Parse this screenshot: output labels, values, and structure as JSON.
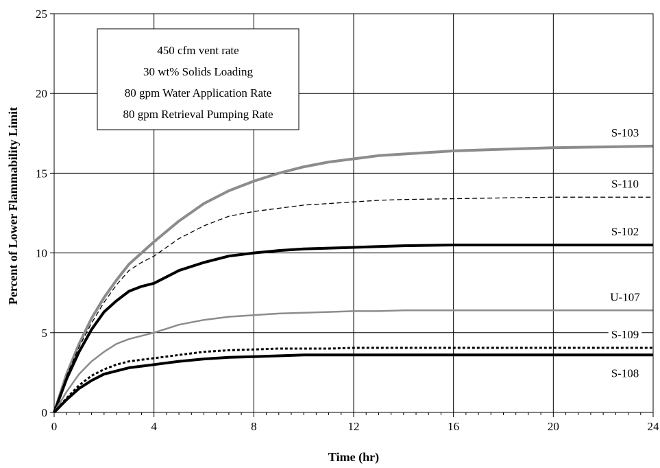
{
  "chart_data": {
    "type": "line",
    "xlabel": "Time (hr)",
    "ylabel": "Percent of Lower Flammability Limit",
    "xlim": [
      0,
      24
    ],
    "ylim": [
      0,
      25
    ],
    "xticks": [
      0,
      4,
      8,
      12,
      16,
      20,
      24
    ],
    "yticks": [
      0,
      5,
      10,
      15,
      20,
      25
    ],
    "grid": true,
    "annotation": [
      "450 cfm vent rate",
      "30 wt% Solids Loading",
      "80 gpm Water Application Rate",
      "80 gpm Retrieval Pumping Rate"
    ],
    "x": [
      0,
      0.5,
      1,
      1.5,
      2,
      2.5,
      3,
      3.5,
      4,
      5,
      6,
      7,
      8,
      9,
      10,
      11,
      12,
      13,
      14,
      16,
      18,
      20,
      22,
      24
    ],
    "series": [
      {
        "name": "S-103",
        "color": "#8c8c8c",
        "style": "solid-thick",
        "values": [
          0,
          2.4,
          4.3,
          5.9,
          7.2,
          8.3,
          9.3,
          10.0,
          10.7,
          12.0,
          13.1,
          13.9,
          14.5,
          15.0,
          15.4,
          15.7,
          15.9,
          16.1,
          16.2,
          16.4,
          16.5,
          16.6,
          16.65,
          16.7
        ]
      },
      {
        "name": "S-110",
        "color": "#000000",
        "style": "dashed",
        "values": [
          0,
          2.3,
          4.1,
          5.6,
          6.9,
          8.0,
          8.9,
          9.4,
          9.8,
          10.9,
          11.7,
          12.3,
          12.6,
          12.8,
          13.0,
          13.1,
          13.2,
          13.3,
          13.35,
          13.4,
          13.45,
          13.5,
          13.5,
          13.5
        ]
      },
      {
        "name": "S-102",
        "color": "#000000",
        "style": "solid-thick",
        "values": [
          0,
          2.1,
          3.8,
          5.2,
          6.3,
          7.0,
          7.6,
          7.9,
          8.1,
          8.9,
          9.4,
          9.8,
          10.0,
          10.15,
          10.25,
          10.3,
          10.35,
          10.4,
          10.45,
          10.5,
          10.5,
          10.5,
          10.5,
          10.5
        ]
      },
      {
        "name": "U-107",
        "color": "#8c8c8c",
        "style": "solid",
        "values": [
          0,
          1.3,
          2.4,
          3.2,
          3.8,
          4.3,
          4.6,
          4.8,
          5.0,
          5.5,
          5.8,
          6.0,
          6.1,
          6.2,
          6.25,
          6.3,
          6.35,
          6.35,
          6.4,
          6.4,
          6.4,
          6.4,
          6.4,
          6.4
        ]
      },
      {
        "name": "S-109",
        "color": "#000000",
        "style": "dotted",
        "values": [
          0,
          0.9,
          1.7,
          2.3,
          2.7,
          3.0,
          3.2,
          3.3,
          3.4,
          3.6,
          3.8,
          3.9,
          3.95,
          4.0,
          4.0,
          4.0,
          4.05,
          4.05,
          4.05,
          4.05,
          4.05,
          4.05,
          4.05,
          4.05
        ]
      },
      {
        "name": "S-108",
        "color": "#000000",
        "style": "solid-thick",
        "values": [
          0,
          0.8,
          1.5,
          2.0,
          2.4,
          2.6,
          2.8,
          2.9,
          3.0,
          3.2,
          3.35,
          3.45,
          3.5,
          3.55,
          3.6,
          3.6,
          3.6,
          3.6,
          3.6,
          3.6,
          3.6,
          3.6,
          3.6,
          3.6
        ]
      }
    ]
  }
}
